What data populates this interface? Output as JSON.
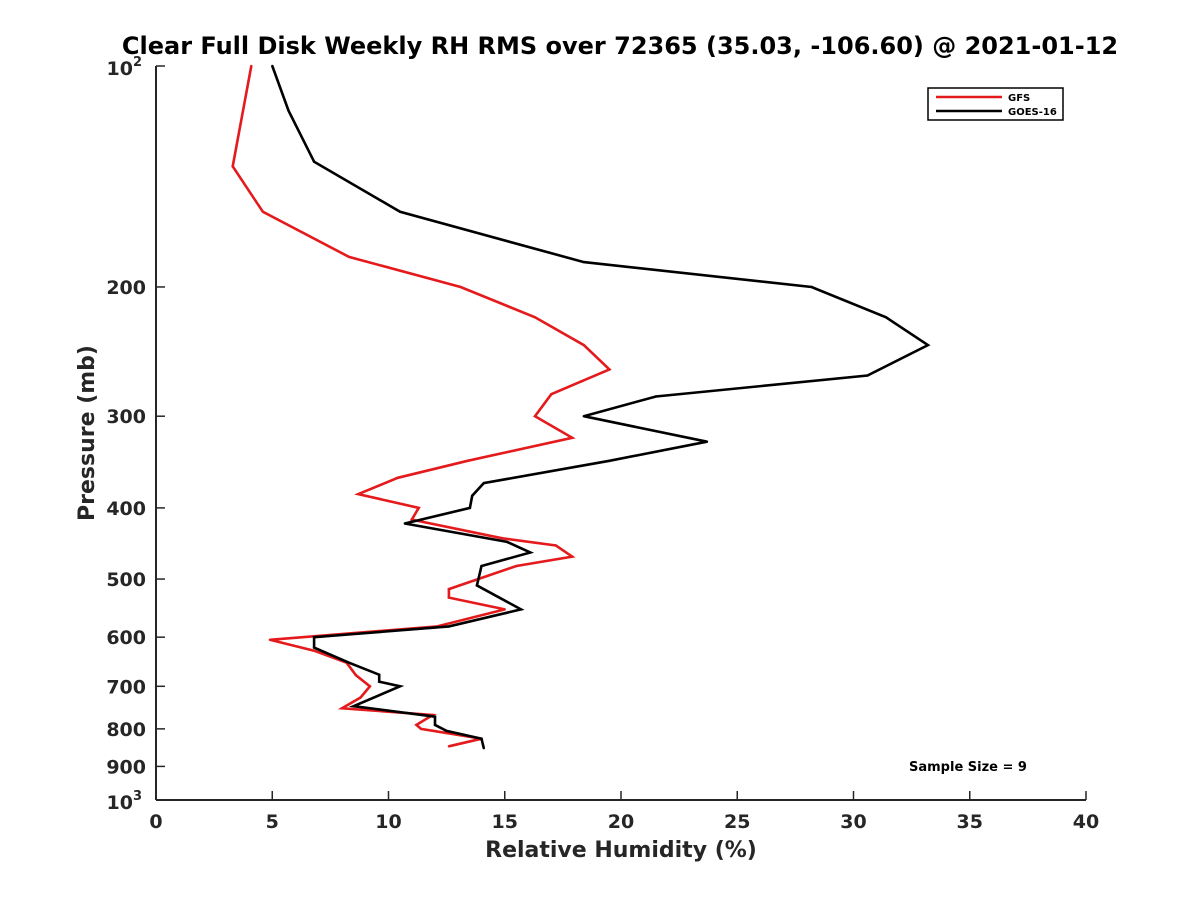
{
  "chart_data": {
    "type": "line",
    "title": "Clear Full Disk Weekly RH RMS over 72365 (35.03, -106.60) @ 2021-01-12",
    "xlabel": "Relative Humidity (%)",
    "ylabel": "Pressure (mb)",
    "xlim": [
      0,
      40
    ],
    "ylim": [
      100,
      1000
    ],
    "y_scale": "log",
    "y_reversed": true,
    "grid": false,
    "legend_position": "top-right",
    "annotation": "Sample Size = 9",
    "x_ticks": [
      0,
      5,
      10,
      15,
      20,
      25,
      30,
      35,
      40
    ],
    "y_ticks": [
      {
        "value": 100,
        "base": "10",
        "exp": "2"
      },
      {
        "value": 200,
        "label": "200"
      },
      {
        "value": 300,
        "label": "300"
      },
      {
        "value": 400,
        "label": "400"
      },
      {
        "value": 500,
        "label": "500"
      },
      {
        "value": 600,
        "label": "600"
      },
      {
        "value": 700,
        "label": "700"
      },
      {
        "value": 800,
        "label": "800"
      },
      {
        "value": 900,
        "label": "900"
      },
      {
        "value": 1000,
        "base": "10",
        "exp": "3"
      }
    ],
    "series": [
      {
        "name": "GFS",
        "color": "#e41a1c",
        "points": [
          [
            4.1,
            100
          ],
          [
            3.3,
            137
          ],
          [
            4.6,
            158
          ],
          [
            8.3,
            182
          ],
          [
            13.1,
            200
          ],
          [
            16.3,
            220
          ],
          [
            18.4,
            240
          ],
          [
            19.5,
            259
          ],
          [
            17.0,
            280
          ],
          [
            16.3,
            300
          ],
          [
            17.9,
            321
          ],
          [
            13.4,
            345
          ],
          [
            10.4,
            364
          ],
          [
            8.7,
            383
          ],
          [
            11.3,
            400
          ],
          [
            11.0,
            415
          ],
          [
            14.9,
            440
          ],
          [
            17.2,
            450
          ],
          [
            17.9,
            466
          ],
          [
            15.5,
            480
          ],
          [
            12.6,
            516
          ],
          [
            12.6,
            530
          ],
          [
            15.0,
            550
          ],
          [
            12.1,
            580
          ],
          [
            4.9,
            605
          ],
          [
            6.8,
            626
          ],
          [
            8.2,
            650
          ],
          [
            8.6,
            676
          ],
          [
            9.2,
            700
          ],
          [
            8.8,
            725
          ],
          [
            8.0,
            750
          ],
          [
            11.9,
            766
          ],
          [
            11.2,
            790
          ],
          [
            11.4,
            800
          ],
          [
            14.0,
            825
          ],
          [
            12.6,
            845
          ]
        ]
      },
      {
        "name": "GOES-16",
        "color": "#000000",
        "points": [
          [
            5.0,
            100
          ],
          [
            5.7,
            115
          ],
          [
            6.8,
            135
          ],
          [
            10.5,
            158
          ],
          [
            18.4,
            185
          ],
          [
            28.2,
            200
          ],
          [
            31.4,
            220
          ],
          [
            33.2,
            240
          ],
          [
            30.6,
            264
          ],
          [
            21.5,
            282
          ],
          [
            18.4,
            300
          ],
          [
            23.7,
            325
          ],
          [
            19.5,
            345
          ],
          [
            14.1,
            370
          ],
          [
            13.6,
            385
          ],
          [
            13.5,
            400
          ],
          [
            10.7,
            420
          ],
          [
            15.1,
            445
          ],
          [
            16.1,
            460
          ],
          [
            14.0,
            480
          ],
          [
            13.8,
            510
          ],
          [
            15.7,
            550
          ],
          [
            12.6,
            580
          ],
          [
            6.8,
            600
          ],
          [
            6.8,
            620
          ],
          [
            8.3,
            650
          ],
          [
            9.6,
            675
          ],
          [
            9.6,
            690
          ],
          [
            10.5,
            700
          ],
          [
            8.5,
            745
          ],
          [
            12.0,
            770
          ],
          [
            12.0,
            790
          ],
          [
            12.5,
            805
          ],
          [
            14.0,
            825
          ],
          [
            14.1,
            850
          ]
        ]
      }
    ]
  }
}
